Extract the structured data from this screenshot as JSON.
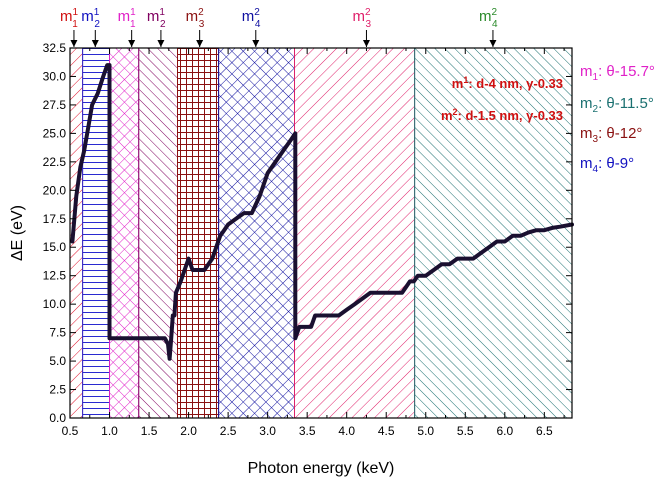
{
  "chart_data": {
    "type": "line",
    "title": "",
    "xlabel": "Photon energy (keV)",
    "ylabel": "ΔE (eV)",
    "xlim": [
      0.5,
      6.85
    ],
    "ylim": [
      0,
      32.5
    ],
    "xticks": [
      "0.5",
      "1.0",
      "1.5",
      "2.0",
      "2.5",
      "3.0",
      "3.5",
      "4.0",
      "4.5",
      "5.0",
      "5.5",
      "6.0",
      "6.5"
    ],
    "yticks": [
      "0.0",
      "2.5",
      "5.0",
      "7.5",
      "10.0",
      "12.5",
      "15.0",
      "17.5",
      "20.0",
      "22.5",
      "25.0",
      "27.5",
      "30.0",
      "32.5"
    ],
    "series": [
      {
        "color": "#1a1030",
        "x": [
          0.53,
          0.58,
          0.63,
          0.68,
          0.73,
          0.78,
          0.85,
          0.92,
          0.97,
          1.0,
          1.0,
          1.05,
          1.2,
          1.4,
          1.6,
          1.7,
          1.74,
          1.76,
          1.78,
          1.8,
          1.82,
          1.84,
          1.87,
          1.9,
          1.95,
          2.0,
          2.05,
          2.1,
          2.15,
          2.2,
          2.3,
          2.4,
          2.45,
          2.5,
          2.6,
          2.7,
          2.8,
          2.9,
          3.0,
          3.1,
          3.2,
          3.3,
          3.35,
          3.35,
          3.4,
          3.45,
          3.5,
          3.55,
          3.6,
          3.7,
          3.8,
          3.9,
          4.0,
          4.1,
          4.2,
          4.3,
          4.4,
          4.5,
          4.6,
          4.7,
          4.75,
          4.8,
          4.85,
          4.9,
          5.0,
          5.1,
          5.2,
          5.3,
          5.4,
          5.5,
          5.6,
          5.7,
          5.8,
          5.9,
          6.0,
          6.1,
          6.2,
          6.3,
          6.4,
          6.5,
          6.6,
          6.7,
          6.85
        ],
        "y": [
          15.5,
          19.5,
          22.0,
          23.5,
          25.5,
          27.5,
          28.5,
          30.0,
          31.0,
          31.0,
          7.0,
          7.0,
          7.0,
          7.0,
          7.0,
          7.0,
          6.5,
          5.2,
          7.0,
          9.0,
          9.0,
          11.0,
          11.5,
          12.0,
          13.0,
          14.0,
          13.0,
          13.0,
          13.0,
          13.0,
          14.0,
          16.0,
          16.5,
          17.0,
          17.5,
          18.0,
          18.0,
          19.5,
          21.5,
          22.5,
          23.5,
          24.5,
          25.0,
          7.0,
          8.0,
          8.0,
          8.0,
          8.0,
          9.0,
          9.0,
          9.0,
          9.0,
          9.5,
          10.0,
          10.5,
          11.0,
          11.0,
          11.0,
          11.0,
          11.0,
          11.5,
          12.0,
          12.0,
          12.5,
          12.5,
          13.0,
          13.5,
          13.5,
          14.0,
          14.0,
          14.0,
          14.5,
          15.0,
          15.5,
          15.5,
          16.0,
          16.0,
          16.3,
          16.5,
          16.5,
          16.7,
          16.8,
          17.0
        ]
      }
    ],
    "regions": [
      {
        "x0": 0.5,
        "x1": 0.66,
        "pattern": "diag-left",
        "color": "#e0102a"
      },
      {
        "x0": 0.66,
        "x1": 1.0,
        "pattern": "horizontal",
        "color": "#2a2ad0"
      },
      {
        "x0": 1.0,
        "x1": 1.37,
        "pattern": "cross",
        "color": "#e020c8"
      },
      {
        "x0": 1.37,
        "x1": 1.86,
        "pattern": "diag-right",
        "color": "#800060"
      },
      {
        "x0": 1.86,
        "x1": 2.38,
        "pattern": "grid",
        "color": "#8a1010"
      },
      {
        "x0": 2.38,
        "x1": 3.34,
        "pattern": "cross",
        "color": "#1010a0"
      },
      {
        "x0": 3.34,
        "x1": 4.86,
        "pattern": "diag-left",
        "color": "#e0206a"
      },
      {
        "x0": 4.86,
        "x1": 6.85,
        "pattern": "diag-right",
        "color": "#1a7070"
      }
    ],
    "top_markers": [
      {
        "x": 0.55,
        "label": "m",
        "sub": "1",
        "sup": "1",
        "color": "#d01010"
      },
      {
        "x": 0.82,
        "label": "m",
        "sub": "2",
        "sup": "1",
        "color": "#1010c0"
      },
      {
        "x": 1.28,
        "label": "m",
        "sub": "1",
        "sup": "1",
        "color": "#e020c8"
      },
      {
        "x": 1.65,
        "label": "m",
        "sub": "2",
        "sup": "1",
        "color": "#800060"
      },
      {
        "x": 2.14,
        "label": "m",
        "sub": "3",
        "sup": "2",
        "color": "#8a1010"
      },
      {
        "x": 2.85,
        "label": "m",
        "sub": "4",
        "sup": "2",
        "color": "#1010a0"
      },
      {
        "x": 4.25,
        "label": "m",
        "sub": "3",
        "sup": "2",
        "color": "#e0206a"
      },
      {
        "x": 5.85,
        "label": "m",
        "sub": "4",
        "sup": "2",
        "color": "#2a8a2a"
      }
    ],
    "annotations": [
      {
        "text_main": "m",
        "text_sup": "1",
        "text_rest": ": d-4 nm, γ-0.33",
        "color": "#d01010"
      },
      {
        "text_main": "m",
        "text_sup": "2",
        "text_rest": ": d-1.5 nm, γ-0.33",
        "color": "#d01010"
      }
    ],
    "legend": [
      {
        "label": "m",
        "sub": "1",
        "rest": ": θ-15.7°",
        "color": "#e020c8"
      },
      {
        "label": "m",
        "sub": "2",
        "rest": ": θ-11.5°",
        "color": "#1a7070"
      },
      {
        "label": "m",
        "sub": "3",
        "rest": ": θ-12°",
        "color": "#8a1010"
      },
      {
        "label": "m",
        "sub": "4",
        "rest": ": θ-9°",
        "color": "#1010c0"
      }
    ],
    "grid": false,
    "legend_position": "right"
  }
}
